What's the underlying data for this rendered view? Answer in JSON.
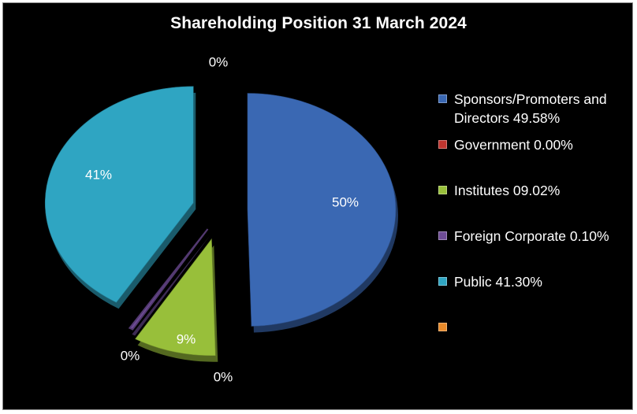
{
  "chart_data": {
    "type": "pie",
    "title": "Shareholding Position 31 March 2024",
    "slices": [
      {
        "legend": "Sponsors/Promoters and Directors 49.58%",
        "value": 49.58,
        "data_label": "50%",
        "color": "#3a68b3"
      },
      {
        "legend": "Government 0.00%",
        "value": 0.0,
        "data_label": "0%",
        "color": "#c0352f"
      },
      {
        "legend": "Institutes 09.02%",
        "value": 9.02,
        "data_label": "9%",
        "color": "#98bf3a"
      },
      {
        "legend": "Foreign Corporate 0.10%",
        "value": 0.1,
        "data_label": "0%",
        "color": "#6e4c96"
      },
      {
        "legend": "Public 41.30%",
        "value": 41.3,
        "data_label": "41%",
        "color": "#2fa5c2"
      },
      {
        "legend": "",
        "value": 0,
        "data_label": "0%",
        "color": "#e88a2a"
      }
    ],
    "legend_position": "right"
  }
}
